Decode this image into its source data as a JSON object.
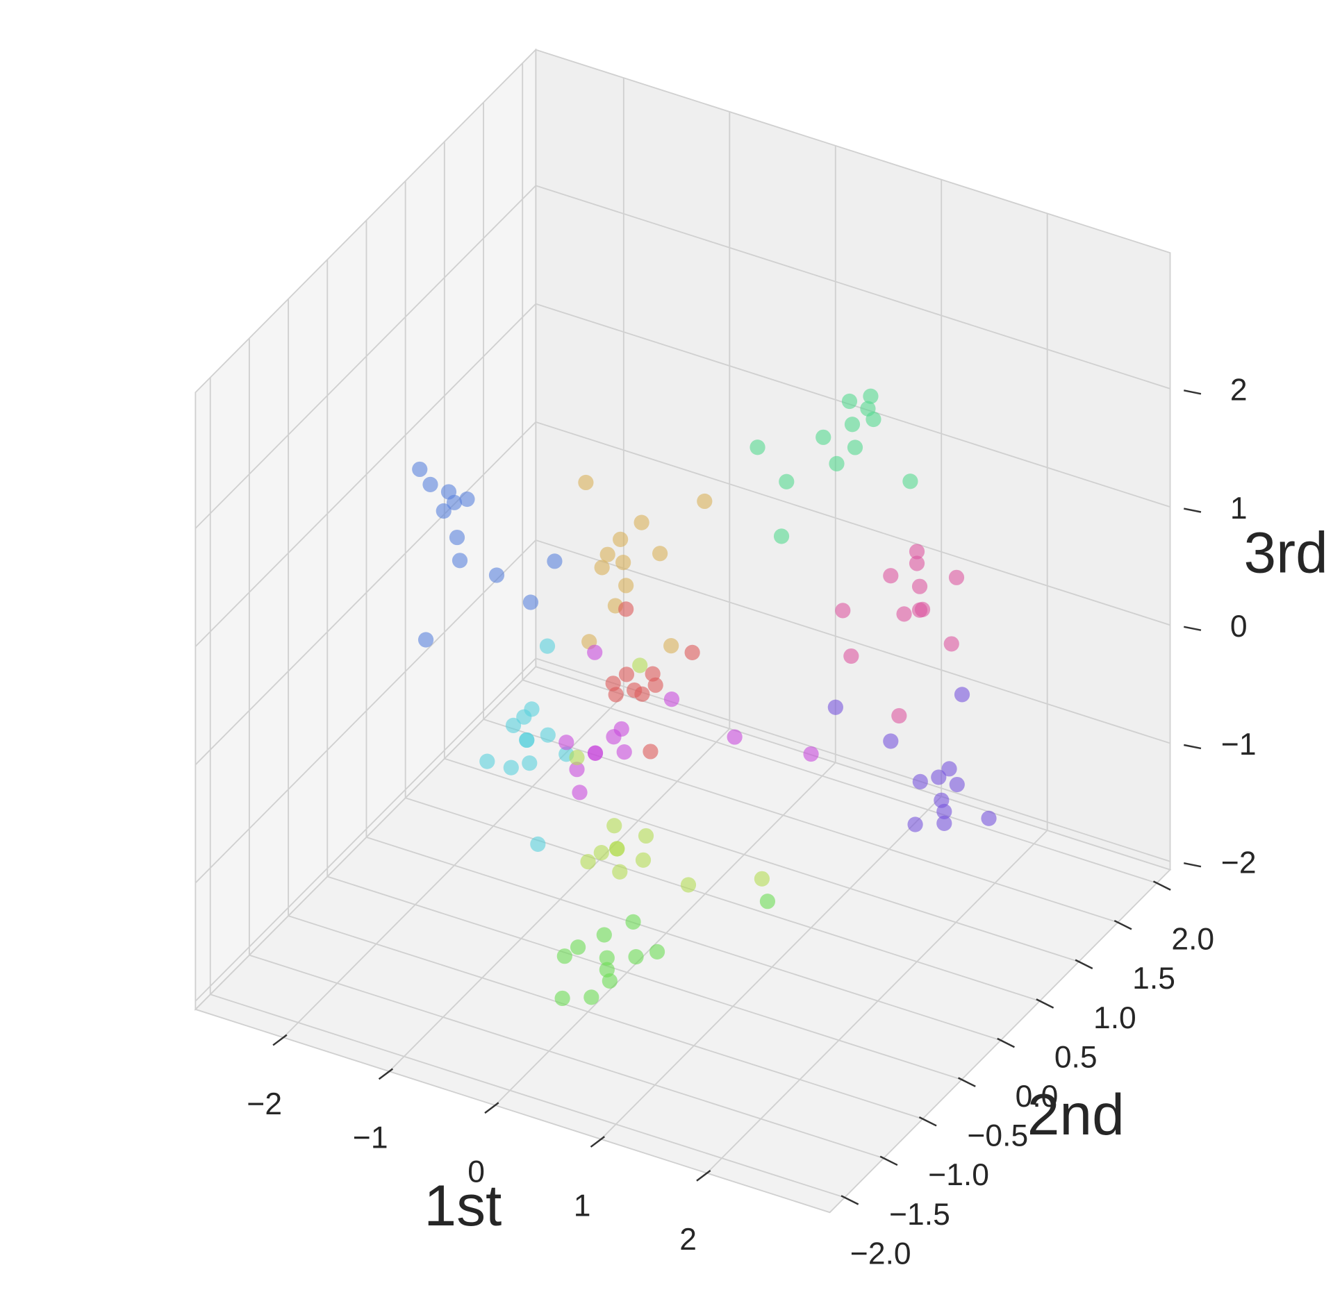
{
  "chart_data": {
    "type": "scatter3d",
    "xlabel": "1st",
    "ylabel": "2nd",
    "zlabel": "3rd",
    "xlim": [
      -2.83,
      3.16
    ],
    "ylim": [
      -2.19,
      2.17
    ],
    "zlim": [
      -2.07,
      3.15
    ],
    "xticks": [
      {
        "value": -2,
        "label": "−2"
      },
      {
        "value": -1,
        "label": "−1"
      },
      0,
      1,
      2
    ],
    "yticks": [
      {
        "value": -2,
        "label": "−2.0"
      },
      {
        "value": -1.5,
        "label": "−1.5"
      },
      {
        "value": -1,
        "label": "−1.0"
      },
      {
        "value": -0.5,
        "label": "−0.5"
      },
      {
        "value": 0,
        "label": "0.0"
      },
      0.5,
      {
        "value": 1,
        "label": "1.0"
      },
      1.5,
      {
        "value": 2,
        "label": "2.0"
      }
    ],
    "zticks": [
      {
        "value": -2,
        "label": "−2"
      },
      {
        "value": -1,
        "label": "−1"
      },
      0,
      1,
      2
    ],
    "grid": true,
    "series": [
      {
        "color": "#5a82dc",
        "x": [
          -2.1,
          -2.3,
          -1.9,
          -2.2,
          -2.0,
          -1.8,
          -2.4,
          -2.1,
          -1.6,
          -1.2,
          -1.9,
          -1.5
        ],
        "y": [
          0,
          0.1,
          -0.1,
          0.2,
          0,
          -0.2,
          0.1,
          0.3,
          0,
          0.2,
          -0.5,
          0.3
        ],
        "z": [
          0.9,
          1.0,
          0.8,
          0.9,
          1.0,
          0.7,
          1.1,
          0.8,
          0.5,
          0.6,
          0.2,
          0.1
        ]
      },
      {
        "color": "#d9b05a",
        "x": [
          -0.7,
          -0.8,
          -0.6,
          -0.7,
          -0.9,
          -0.5,
          -0.7,
          -0.6,
          -0.3,
          -1.2,
          -0.1,
          -0.8
        ],
        "y": [
          0.4,
          0.5,
          0.3,
          0.2,
          0.4,
          0.6,
          0.3,
          0.5,
          0.9,
          0.6,
          0.2,
          0.1
        ],
        "z": [
          0.6,
          0.7,
          0.5,
          0.8,
          0.5,
          0.6,
          0.3,
          0.9,
          0.9,
          1.0,
          0.2,
          0.1
        ]
      },
      {
        "color": "#55d98f",
        "x": [
          0.8,
          0.7,
          0.9,
          0.8,
          1.0,
          0.6,
          0.8,
          0.9,
          0.4,
          1.2,
          0.5,
          0.2
        ],
        "y": [
          1.3,
          1.4,
          1.2,
          1.5,
          1.3,
          1.2,
          1.1,
          1.4,
          1.0,
          1.5,
          0.8,
          0.9
        ],
        "z": [
          1.6,
          1.7,
          1.5,
          1.6,
          1.7,
          1.5,
          1.4,
          1.8,
          1.2,
          1.1,
          0.9,
          1.5
        ]
      },
      {
        "color": "#dc56a0",
        "x": [
          2.1,
          2.0,
          2.2,
          2.1,
          2.3,
          1.9,
          2.1,
          2.0,
          1.6,
          2.4,
          1.3,
          2.2
        ],
        "y": [
          0.4,
          0.5,
          0.3,
          0.4,
          0.6,
          0.3,
          0.2,
          0.5,
          0.2,
          0.4,
          0.5,
          0.0
        ],
        "z": [
          1.2,
          1.3,
          1.1,
          1.0,
          1.2,
          1.3,
          1.1,
          1.4,
          0.6,
          0.8,
          0.7,
          0.4
        ]
      },
      {
        "color": "#7855dc",
        "x": [
          2.6,
          2.5,
          2.7,
          2.6,
          2.4,
          2.7,
          2.6,
          2.5,
          2.9,
          1.9,
          1.6,
          2.5
        ],
        "y": [
          0,
          0.1,
          -0.1,
          0.2,
          0,
          -0.1,
          0.1,
          -0.2,
          0.2,
          0.3,
          0.0,
          0.4
        ],
        "z": [
          -0.2,
          -0.1,
          -0.3,
          -0.2,
          -0.1,
          -0.2,
          0.0,
          -0.3,
          -0.4,
          -0.1,
          0.3,
          0.4
        ]
      },
      {
        "color": "#dc5a5a",
        "x": [
          -0.3,
          -0.2,
          -0.4,
          -0.3,
          -0.1,
          -0.5,
          -0.3,
          0.1,
          -0.6,
          0.0
        ],
        "y": [
          0,
          0.1,
          -0.1,
          0.1,
          0,
          0.0,
          -0.1,
          0.2,
          0.3,
          -0.2
        ],
        "z": [
          -0.1,
          0.0,
          -0.1,
          -0.2,
          0.0,
          -0.1,
          0.1,
          0.2,
          0.3,
          -0.4
        ]
      },
      {
        "color": "#5ad0dc",
        "x": [
          -0.8,
          -0.9,
          -0.7,
          -0.8,
          -1.0,
          -0.6,
          -0.8,
          -0.9,
          -1.1,
          -0.5,
          -0.4,
          -0.9
        ],
        "y": [
          -0.7,
          -0.6,
          -0.8,
          -0.7,
          -0.6,
          -0.7,
          -0.9,
          -0.5,
          -0.8,
          -0.6,
          -1.1,
          -0.3
        ],
        "z": [
          -0.2,
          -0.1,
          -0.3,
          -0.2,
          -0.2,
          -0.1,
          -0.3,
          -0.1,
          -0.4,
          -0.3,
          -0.7,
          0.3
        ]
      },
      {
        "color": "#c84bdc",
        "x": [
          -0.3,
          -0.2,
          -0.4,
          -0.3,
          -0.1,
          -0.5,
          -0.3,
          -0.2,
          0.2,
          -0.6,
          0.5,
          1.0
        ],
        "y": [
          -0.5,
          -0.4,
          -0.6,
          -0.5,
          -0.4,
          -0.6,
          -0.7,
          -0.3,
          -0.2,
          -0.1,
          0.2,
          0.5
        ],
        "z": [
          -0.3,
          -0.2,
          -0.4,
          -0.3,
          -0.3,
          -0.2,
          -0.5,
          -0.2,
          0.1,
          0.2,
          -0.4,
          -0.6
        ]
      },
      {
        "color": "#b4dc55",
        "x": [
          0.2,
          0.1,
          0.3,
          0.2,
          0.4,
          0.0,
          0.2,
          0.3,
          -0.4,
          0.8,
          1.2,
          -0.1
        ],
        "y": [
          -0.9,
          -0.8,
          -1.0,
          -0.9,
          -0.8,
          -1.0,
          -1.1,
          -0.7,
          -0.6,
          -0.8,
          -0.4,
          -0.2
        ],
        "z": [
          -0.7,
          -0.6,
          -0.8,
          -0.7,
          -0.6,
          -0.8,
          -0.6,
          -0.9,
          -0.3,
          -0.9,
          -1.0,
          0.3
        ]
      },
      {
        "color": "#6cdc55",
        "x": [
          0.4,
          0.3,
          0.5,
          0.4,
          0.6,
          0.2,
          0.4,
          0.5,
          0.0,
          0.8,
          1.4,
          0.2
        ],
        "y": [
          -1.3,
          -1.2,
          -1.4,
          -1.3,
          -1.2,
          -1.4,
          -1.5,
          -1.1,
          -1.3,
          -1.2,
          -0.6,
          -1.6
        ],
        "z": [
          -1.3,
          -1.2,
          -1.4,
          -1.4,
          -1.3,
          -1.2,
          -1.5,
          -1.1,
          -1.4,
          -1.2,
          -1.0,
          -1.5
        ]
      }
    ]
  }
}
